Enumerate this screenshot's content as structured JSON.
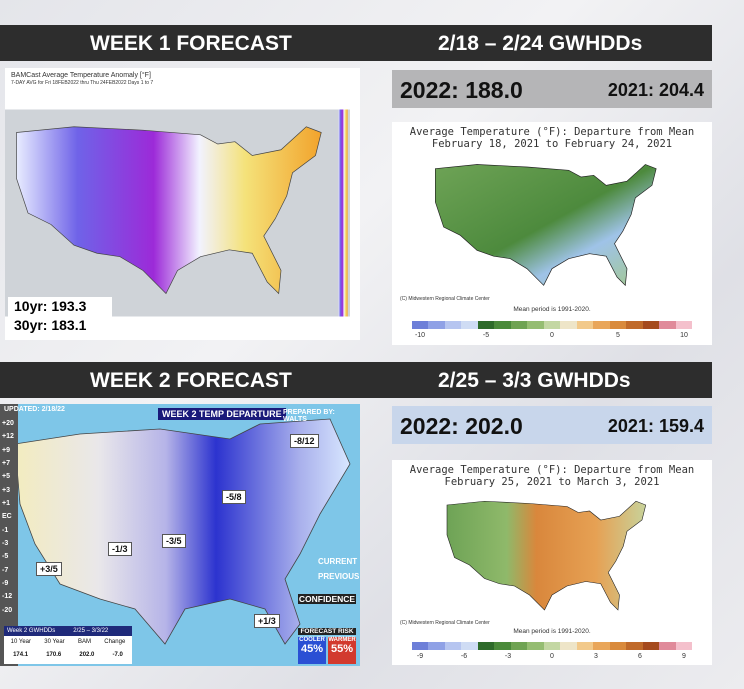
{
  "week1": {
    "header": "WEEK 1 FORECAST",
    "range": "2/18 – 2/24 GWHDDs",
    "this_year": "2022: 188.0",
    "last_year": "2021: 204.4",
    "forecast_map": {
      "title": "BAMCast Average Temperature Anomaly [°F]",
      "subtitle": "7-DAY AVG for Fri 18FEB2022 thru Thu 24FEB2022 Days 1 to 7",
      "normals": [
        "10yr: 193.3",
        "30yr: 183.1"
      ]
    },
    "reference_map": {
      "title": [
        "Average Temperature (°F): Departure from Mean",
        "February 18, 2021 to February 24, 2021"
      ],
      "credit": "(C) Midwestern Regional Climate Center",
      "mean_period": "Mean period is 1991-2020.",
      "scale": [
        "-10",
        "-5",
        "0",
        "5",
        "10"
      ]
    }
  },
  "week2": {
    "header": "WEEK 2 FORECAST",
    "range": "2/25 – 3/3 GWHDDs",
    "this_year": "2022: 202.0",
    "last_year": "2021: 159.4",
    "forecast_map": {
      "updated": "UPDATED: 2/18/22",
      "title": "WEEK 2 TEMP DEPARTURE",
      "prepared_by": "PREPARED BY: WALTS",
      "scale": [
        "+20",
        "+12",
        "+9",
        "+7",
        "+5",
        "+3",
        "+1",
        "EC",
        "-1",
        "-3",
        "-5",
        "-7",
        "-9",
        "-12",
        "-20"
      ],
      "anomalies": [
        "-8/12",
        "-5/8",
        "-3/5",
        "-1/3",
        "+3/5",
        "+1/3"
      ],
      "legend": [
        "CURRENT",
        "PREVIOUS"
      ],
      "confidence": "CONFIDENCE",
      "forecast_risk": "FORECAST RISK",
      "cooler": "COOLER",
      "cooler_pct": "45%",
      "warmer": "WARMER",
      "warmer_pct": "55%",
      "table": {
        "title": [
          "Week 2 GWHDDs",
          "2/25 – 3/3/22"
        ],
        "headers": [
          "10 Year",
          "30 Year",
          "BAM",
          "Change"
        ],
        "values": [
          "174.1",
          "170.6",
          "202.0",
          "-7.0"
        ]
      }
    },
    "reference_map": {
      "title": [
        "Average Temperature (°F): Departure from Mean",
        "February 25, 2021 to March 3, 2021"
      ],
      "credit": "(C) Midwestern Regional Climate Center",
      "mean_period": "Mean period is 1991-2020.",
      "scale": [
        "-9",
        "-6",
        "-3",
        "0",
        "3",
        "6",
        "9"
      ]
    }
  }
}
